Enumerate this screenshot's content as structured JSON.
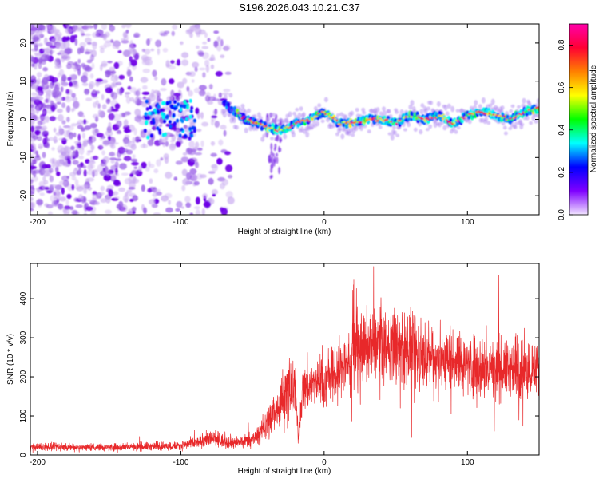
{
  "title": "S196.2026.043.10.21.C37",
  "chart_data": [
    {
      "type": "heatmap",
      "xlabel": "Height of straight line (km)",
      "ylabel": "Frequency (Hz)",
      "xlim": [
        -205,
        150
      ],
      "ylim": [
        -25,
        25
      ],
      "xticks": [
        -200,
        -100,
        0,
        100
      ],
      "yticks": [
        -20,
        -10,
        0,
        10,
        20
      ],
      "colorbar": {
        "label": "Normalized spectral amplitude",
        "range": [
          0,
          0.9
        ],
        "ticks": [
          0.0,
          0.2,
          0.4,
          0.6,
          0.8
        ],
        "tick_labels": [
          "0.0",
          "0.2",
          "0.4",
          "0.6",
          "0.8"
        ],
        "colors": [
          "#f2e6ff",
          "#7f00ff",
          "#0000ff",
          "#00ffff",
          "#00ff00",
          "#ffff00",
          "#ff8000",
          "#ff0033",
          "#ff00aa"
        ]
      },
      "ridge": {
        "description": "strong narrow signal near 0 Hz from about -70 km to 150 km",
        "x": [
          -70,
          -55,
          -40,
          -30,
          -20,
          -10,
          0,
          10,
          20,
          30,
          40,
          50,
          60,
          70,
          80,
          90,
          100,
          110,
          120,
          130,
          140,
          150
        ],
        "freq": [
          4,
          0,
          -2,
          -3,
          -1,
          0,
          2,
          -1,
          -1,
          0,
          0,
          -1,
          1,
          0,
          1,
          -1,
          1,
          2,
          1,
          0,
          2,
          3
        ]
      },
      "noise_region": {
        "x_from": -205,
        "x_to": -65,
        "freq_range": [
          -25,
          25
        ]
      }
    },
    {
      "type": "line",
      "xlabel": "Height of straight line (km)",
      "ylabel": "SNR (10 * v/v)",
      "xlim": [
        -205,
        150
      ],
      "ylim": [
        0,
        490
      ],
      "xticks": [
        -200,
        -100,
        0,
        100
      ],
      "yticks": [
        0,
        100,
        200,
        300,
        400
      ],
      "color": "#e8282a",
      "envelope": {
        "x": [
          -205,
          -150,
          -120,
          -100,
          -90,
          -80,
          -70,
          -60,
          -50,
          -45,
          -40,
          -35,
          -30,
          -25,
          -20,
          -18,
          -15,
          -10,
          0,
          10,
          20,
          30,
          40,
          50,
          60,
          70,
          80,
          90,
          100,
          110,
          120,
          130,
          140,
          150
        ],
        "mean": [
          20,
          20,
          22,
          24,
          30,
          42,
          36,
          30,
          40,
          55,
          80,
          110,
          140,
          160,
          160,
          40,
          170,
          180,
          190,
          215,
          250,
          275,
          285,
          275,
          260,
          250,
          245,
          245,
          235,
          225,
          220,
          220,
          220,
          225
        ]
      }
    }
  ]
}
